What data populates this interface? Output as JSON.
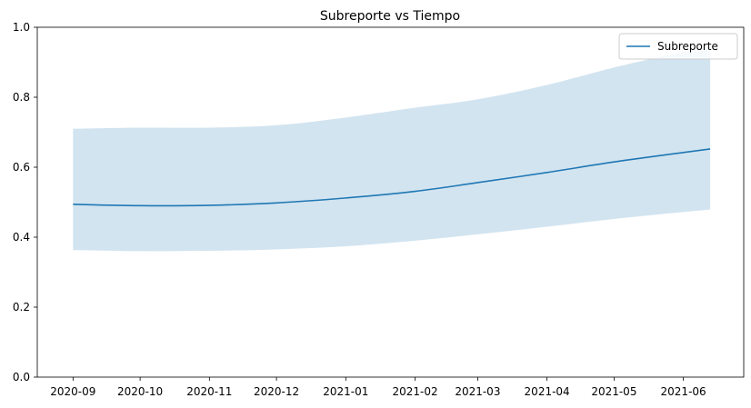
{
  "chart_data": {
    "type": "line",
    "title": "Subreporte vs Tiempo",
    "xlabel": "",
    "ylabel": "",
    "x_tick_labels": [
      "2020-09",
      "2020-10",
      "2020-11",
      "2020-12",
      "2021-01",
      "2021-02",
      "2021-03",
      "2021-04",
      "2021-05",
      "2021-06"
    ],
    "y_tick_labels": [
      "0.0",
      "0.2",
      "0.4",
      "0.6",
      "0.8",
      "1.0"
    ],
    "ylim": [
      0,
      1
    ],
    "xlim": [
      "2020-08-16",
      "2021-06-28"
    ],
    "grid": false,
    "legend_position": "top-right",
    "series": [
      {
        "name": "Subreporte",
        "color": "#1f77b4",
        "band_color": "#1f77b4",
        "x": [
          "2020-09-01",
          "2020-10-01",
          "2020-11-01",
          "2020-12-01",
          "2021-01-01",
          "2021-02-01",
          "2021-03-01",
          "2021-04-01",
          "2021-05-01",
          "2021-06-01",
          "2021-06-13"
        ],
        "y": [
          0.494,
          0.49,
          0.491,
          0.498,
          0.512,
          0.531,
          0.556,
          0.585,
          0.615,
          0.642,
          0.652
        ],
        "lower": [
          0.363,
          0.36,
          0.361,
          0.365,
          0.374,
          0.39,
          0.408,
          0.43,
          0.452,
          0.472,
          0.479
        ],
        "upper": [
          0.71,
          0.713,
          0.713,
          0.72,
          0.742,
          0.77,
          0.794,
          0.835,
          0.885,
          0.93,
          0.94
        ]
      }
    ]
  }
}
